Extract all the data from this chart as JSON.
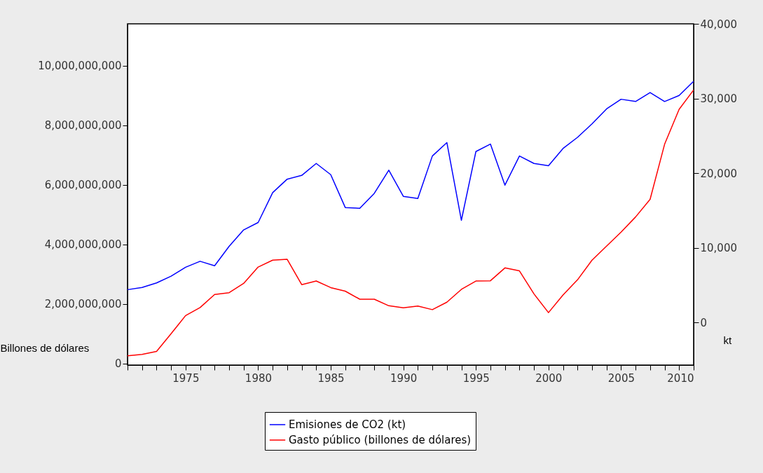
{
  "chart_data": {
    "type": "line",
    "x": [
      1971,
      1972,
      1973,
      1974,
      1975,
      1976,
      1977,
      1978,
      1979,
      1980,
      1981,
      1982,
      1983,
      1984,
      1985,
      1986,
      1987,
      1988,
      1989,
      1990,
      1991,
      1992,
      1993,
      1994,
      1995,
      1996,
      1997,
      1998,
      1999,
      2000,
      2001,
      2002,
      2003,
      2004,
      2005,
      2006,
      2007,
      2008,
      2009,
      2010
    ],
    "series": [
      {
        "name": "Emisiones de CO2 (kt)",
        "color": "#0000ff",
        "axis": "y2",
        "values": [
          4400,
          4700,
          5300,
          6200,
          7400,
          8200,
          7600,
          10200,
          12400,
          13400,
          17400,
          19200,
          19700,
          21300,
          19800,
          15400,
          15300,
          17300,
          20400,
          16900,
          16600,
          22300,
          24100,
          13700,
          22900,
          23900,
          18400,
          22300,
          21300,
          21000,
          23300,
          24800,
          26600,
          28600,
          29900,
          29600,
          30800,
          29600,
          30400,
          32300
        ]
      },
      {
        "name": "Gasto público (billones de dólares)",
        "color": "#ff0000",
        "values": [
          260000000,
          310000000,
          410000000,
          1000000000,
          1610000000,
          1880000000,
          2320000000,
          2380000000,
          2690000000,
          3240000000,
          3470000000,
          3500000000,
          2650000000,
          2770000000,
          2550000000,
          2430000000,
          2160000000,
          2160000000,
          1940000000,
          1870000000,
          1930000000,
          1810000000,
          2060000000,
          2490000000,
          2770000000,
          2780000000,
          3210000000,
          3110000000,
          2340000000,
          1710000000,
          2300000000,
          2810000000,
          3470000000,
          3940000000,
          4410000000,
          4920000000,
          5510000000,
          7360000000,
          8530000000,
          9180000000
        ]
      }
    ],
    "xlim": [
      1971,
      2010
    ],
    "xticks": [
      {
        "value": 1971,
        "label": null
      },
      {
        "value": 1972,
        "label": null
      },
      {
        "value": 1973,
        "label": null
      },
      {
        "value": 1974,
        "label": null
      },
      1975,
      {
        "value": 1976,
        "label": null
      },
      {
        "value": 1977,
        "label": null
      },
      {
        "value": 1978,
        "label": null
      },
      {
        "value": 1979,
        "label": null
      },
      1980,
      {
        "value": 1981,
        "label": null
      },
      {
        "value": 1982,
        "label": null
      },
      {
        "value": 1983,
        "label": null
      },
      {
        "value": 1984,
        "label": null
      },
      1985,
      {
        "value": 1986,
        "label": null
      },
      {
        "value": 1987,
        "label": null
      },
      {
        "value": 1988,
        "label": null
      },
      {
        "value": 1989,
        "label": null
      },
      1990,
      {
        "value": 1991,
        "label": null
      },
      {
        "value": 1992,
        "label": null
      },
      {
        "value": 1993,
        "label": null
      },
      {
        "value": 1994,
        "label": null
      },
      1995,
      {
        "value": 1996,
        "label": null
      },
      {
        "value": 1997,
        "label": null
      },
      {
        "value": 1998,
        "label": null
      },
      {
        "value": 1999,
        "label": null
      },
      2000,
      {
        "value": 2001,
        "label": null
      },
      {
        "value": 2002,
        "label": null
      },
      {
        "value": 2003,
        "label": null
      },
      {
        "value": 2004,
        "label": null
      },
      2005,
      {
        "value": 2006,
        "label": null
      },
      {
        "value": 2007,
        "label": null
      },
      {
        "value": 2008,
        "label": null
      },
      {
        "value": 2009,
        "label": null
      },
      2010
    ],
    "ylim": [
      -50000000,
      11400000000
    ],
    "yticks": [
      {
        "value": 0,
        "label": "0"
      },
      {
        "value": 2000000000,
        "label": "2,000,000,000"
      },
      {
        "value": 4000000000,
        "label": "4,000,000,000"
      },
      {
        "value": 6000000000,
        "label": "6,000,000,000"
      },
      {
        "value": 8000000000,
        "label": "8,000,000,000"
      },
      {
        "value": 10000000000,
        "label": "10,000,000,000"
      }
    ],
    "y2lim": [
      -5700,
      40000
    ],
    "y2ticks": [
      {
        "value": 0,
        "label": "0"
      },
      {
        "value": 10000,
        "label": "10,000"
      },
      {
        "value": 20000,
        "label": "20,000"
      },
      {
        "value": 30000,
        "label": "30,000"
      },
      {
        "value": 40000,
        "label": "40,000"
      }
    ],
    "ylabel": "Billones de dólares",
    "y2label": "kt",
    "legend": "bottom",
    "grid": false,
    "line_style": "solid",
    "marker": "none"
  }
}
